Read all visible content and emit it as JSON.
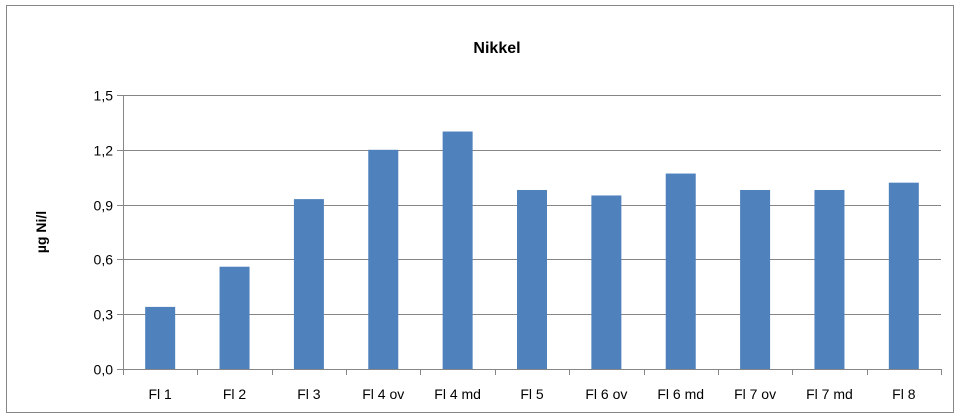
{
  "chart_data": {
    "type": "bar",
    "title": "Nikkel",
    "xlabel": "",
    "ylabel": "µg Ni/l",
    "categories": [
      "Fl 1",
      "Fl 2",
      "Fl 3",
      "Fl 4 ov",
      "Fl 4 md",
      "Fl 5",
      "Fl 6 ov",
      "Fl 6 md",
      "Fl 7 ov",
      "Fl 7 md",
      "Fl 8"
    ],
    "values": [
      0.34,
      0.56,
      0.93,
      1.2,
      1.3,
      0.98,
      0.95,
      1.07,
      0.98,
      0.98,
      1.02
    ],
    "ylim": [
      0,
      1.5
    ],
    "yticks": [
      0,
      0.3,
      0.6,
      0.9,
      1.2,
      1.5
    ],
    "ytick_labels": [
      "0,0",
      "0,3",
      "0,6",
      "0,9",
      "1,2",
      "1,5"
    ],
    "grid": true,
    "legend": "none",
    "bar_color": "#4F81BD",
    "gridline_color": "#868686"
  }
}
